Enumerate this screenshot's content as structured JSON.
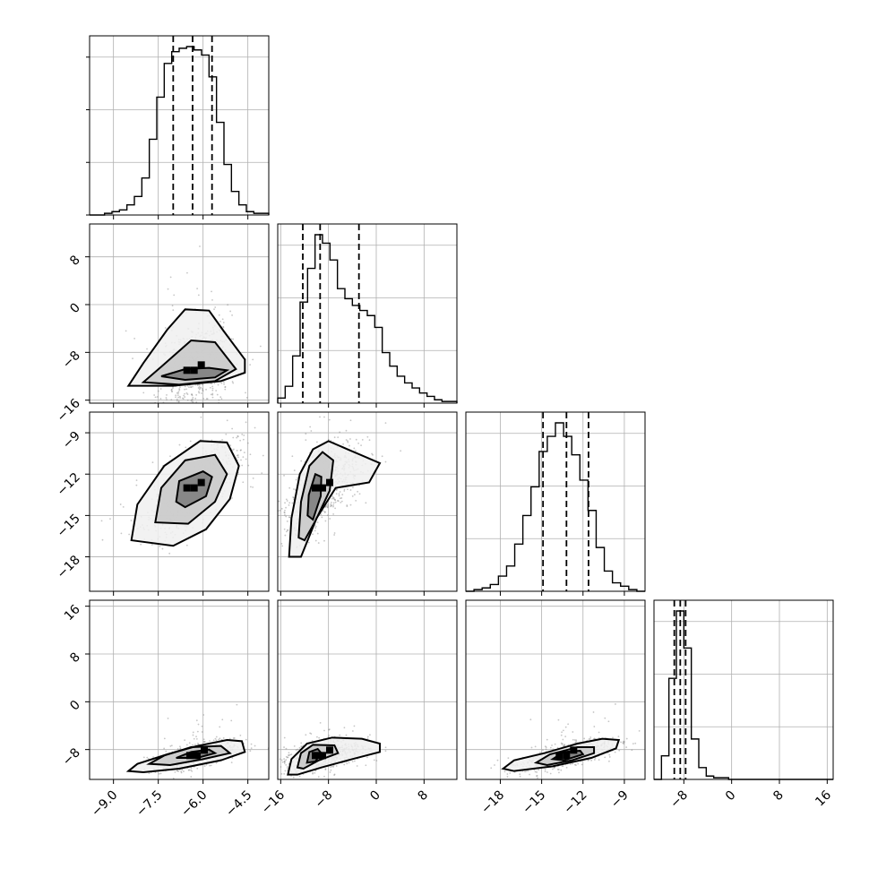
{
  "chart_data": {
    "type": "corner",
    "parameters": 4,
    "grid": true,
    "colors": {
      "ink": "#000000",
      "grid": "#b0b0b0",
      "samples": "#808080",
      "background": "#ffffff"
    },
    "parameter_ranges": [
      [
        -9.8,
        -3.8
      ],
      [
        -16.5,
        13.5
      ],
      [
        -20.5,
        -7.5
      ],
      [
        -13,
        17
      ]
    ],
    "ticks": [
      {
        "values": [
          -9.0,
          -7.5,
          -6.0,
          -4.5
        ],
        "labels": [
          "−9.0",
          "−7.5",
          "−6.0",
          "−4.5"
        ]
      },
      {
        "values": [
          -16,
          -8,
          0,
          8
        ],
        "labels": [
          "−16",
          "−8",
          "0",
          "8"
        ]
      },
      {
        "values": [
          -18,
          -15,
          -12,
          -9
        ],
        "labels": [
          "−18",
          "−15",
          "−12",
          "−9"
        ]
      },
      {
        "values": [
          -8,
          0,
          8,
          16
        ],
        "labels": [
          "−8",
          "0",
          "8",
          "16"
        ]
      }
    ],
    "quantiles": [
      [
        -7.0,
        -6.35,
        -5.7
      ],
      [
        -12.3,
        -9.4,
        -2.9
      ],
      [
        -14.9,
        -13.2,
        -11.6
      ],
      [
        -9.6,
        -8.6,
        -7.7
      ]
    ],
    "histograms": [
      {
        "bins": [
          -9.8,
          -3.8
        ],
        "counts": [
          0,
          0,
          1,
          2,
          3,
          6,
          11,
          22,
          45,
          70,
          90,
          97,
          99,
          100,
          98,
          95,
          82,
          55,
          30,
          14,
          6,
          2,
          1,
          1
        ]
      },
      {
        "bins": [
          -16.5,
          13.5
        ],
        "counts": [
          3,
          10,
          28,
          60,
          80,
          100,
          95,
          85,
          68,
          62,
          58,
          55,
          52,
          45,
          30,
          22,
          16,
          12,
          9,
          6,
          4,
          2,
          1,
          1
        ]
      },
      {
        "bins": [
          -20.5,
          -7.5
        ],
        "counts": [
          0,
          1,
          2,
          4,
          9,
          15,
          28,
          45,
          62,
          83,
          92,
          100,
          92,
          81,
          66,
          48,
          26,
          12,
          5,
          3,
          1,
          0
        ]
      },
      {
        "bins": [
          -13,
          17
        ],
        "counts": [
          0,
          14,
          60,
          100,
          78,
          24,
          7,
          2,
          1,
          1,
          0,
          0,
          0,
          0,
          0,
          0,
          0,
          0,
          0,
          0,
          0,
          0,
          0,
          0
        ]
      }
    ],
    "pairs": [
      {
        "row": 1,
        "col": 0,
        "mean": [
          -6.3,
          -11.0
        ],
        "sd": [
          0.6,
          4.0
        ],
        "corr": 0.25,
        "contours": [
          {
            "level": "inner",
            "points": [
              [
                -7.4,
                -12.0
              ],
              [
                -6.6,
                -10.8
              ],
              [
                -5.8,
                -10.6
              ],
              [
                -5.2,
                -11.0
              ],
              [
                -5.6,
                -12.2
              ],
              [
                -6.6,
                -12.6
              ]
            ]
          },
          {
            "level": "middle",
            "points": [
              [
                -8.0,
                -13.0
              ],
              [
                -7.4,
                -10.4
              ],
              [
                -6.4,
                -6.0
              ],
              [
                -5.6,
                -6.3
              ],
              [
                -4.9,
                -10.8
              ],
              [
                -5.6,
                -12.8
              ],
              [
                -6.8,
                -13.4
              ]
            ]
          },
          {
            "level": "outer",
            "points": [
              [
                -8.5,
                -13.6
              ],
              [
                -8.0,
                -9.8
              ],
              [
                -7.2,
                -4.2
              ],
              [
                -6.6,
                -0.8
              ],
              [
                -5.8,
                -1.0
              ],
              [
                -5.3,
                -4.5
              ],
              [
                -4.6,
                -9.2
              ],
              [
                -4.6,
                -11.4
              ],
              [
                -5.4,
                -12.8
              ],
              [
                -7.0,
                -13.6
              ]
            ]
          }
        ]
      },
      {
        "row": 2,
        "col": 0,
        "mean": [
          -6.3,
          -13.0
        ],
        "sd": [
          0.7,
          1.6
        ],
        "corr": 0.7,
        "contours": [
          {
            "level": "inner",
            "points": [
              [
                -6.9,
                -14.0
              ],
              [
                -6.8,
                -12.5
              ],
              [
                -6.0,
                -11.8
              ],
              [
                -5.7,
                -12.2
              ],
              [
                -5.9,
                -13.6
              ],
              [
                -6.6,
                -14.4
              ]
            ]
          },
          {
            "level": "middle",
            "points": [
              [
                -7.6,
                -15.5
              ],
              [
                -7.4,
                -13.0
              ],
              [
                -6.6,
                -11.0
              ],
              [
                -5.6,
                -10.6
              ],
              [
                -5.2,
                -12.0
              ],
              [
                -5.6,
                -14.0
              ],
              [
                -6.5,
                -15.6
              ]
            ]
          },
          {
            "level": "outer",
            "points": [
              [
                -8.4,
                -16.8
              ],
              [
                -8.2,
                -14.2
              ],
              [
                -7.3,
                -11.4
              ],
              [
                -6.1,
                -9.6
              ],
              [
                -5.2,
                -9.7
              ],
              [
                -4.8,
                -11.4
              ],
              [
                -5.1,
                -13.8
              ],
              [
                -5.9,
                -16.0
              ],
              [
                -7.0,
                -17.2
              ]
            ]
          }
        ]
      },
      {
        "row": 2,
        "col": 1,
        "mean": [
          -9.0,
          -13.0
        ],
        "sd": [
          3.2,
          1.6
        ],
        "corr": 0.6,
        "contours": [
          {
            "level": "inner",
            "points": [
              [
                -11.5,
                -15.0
              ],
              [
                -11.3,
                -13.5
              ],
              [
                -10.2,
                -12.0
              ],
              [
                -9.2,
                -12.2
              ],
              [
                -9.3,
                -13.6
              ],
              [
                -10.6,
                -15.3
              ]
            ]
          },
          {
            "level": "middle",
            "points": [
              [
                -13.0,
                -16.6
              ],
              [
                -12.6,
                -14.0
              ],
              [
                -11.2,
                -11.4
              ],
              [
                -9.0,
                -10.4
              ],
              [
                -7.2,
                -11.0
              ],
              [
                -7.8,
                -13.2
              ],
              [
                -10.2,
                -15.4
              ],
              [
                -12.0,
                -16.8
              ]
            ]
          },
          {
            "level": "outer",
            "points": [
              [
                -14.6,
                -18.0
              ],
              [
                -14.2,
                -15.2
              ],
              [
                -12.8,
                -12.0
              ],
              [
                -10.6,
                -10.2
              ],
              [
                -8.0,
                -9.6
              ],
              [
                -4.8,
                -10.2
              ],
              [
                0.6,
                -11.2
              ],
              [
                -1.2,
                -12.6
              ],
              [
                -6.8,
                -13.0
              ],
              [
                -10.0,
                -15.2
              ],
              [
                -12.6,
                -18.0
              ]
            ]
          }
        ]
      },
      {
        "row": 3,
        "col": 0,
        "mean": [
          -6.2,
          -9.0
        ],
        "sd": [
          0.6,
          1.3
        ],
        "corr": 0.65,
        "contours": [
          {
            "level": "inner",
            "points": [
              [
                -6.9,
                -9.4
              ],
              [
                -6.4,
                -8.4
              ],
              [
                -5.8,
                -8.0
              ],
              [
                -5.6,
                -8.6
              ],
              [
                -6.2,
                -9.4
              ]
            ]
          },
          {
            "level": "middle",
            "points": [
              [
                -7.8,
                -10.4
              ],
              [
                -7.3,
                -9.0
              ],
              [
                -6.4,
                -7.6
              ],
              [
                -5.4,
                -7.4
              ],
              [
                -5.1,
                -8.6
              ],
              [
                -6.0,
                -9.6
              ],
              [
                -7.1,
                -10.6
              ]
            ]
          },
          {
            "level": "outer",
            "points": [
              [
                -8.5,
                -11.6
              ],
              [
                -8.2,
                -10.4
              ],
              [
                -7.2,
                -8.8
              ],
              [
                -6.2,
                -7.4
              ],
              [
                -5.2,
                -6.4
              ],
              [
                -4.7,
                -6.6
              ],
              [
                -4.6,
                -8.4
              ],
              [
                -5.4,
                -9.8
              ],
              [
                -6.8,
                -11.2
              ],
              [
                -8.0,
                -11.8
              ]
            ]
          }
        ]
      },
      {
        "row": 3,
        "col": 1,
        "mean": [
          -9.0,
          -9.0
        ],
        "sd": [
          3.2,
          1.3
        ],
        "corr": 0.45,
        "contours": [
          {
            "level": "inner",
            "points": [
              [
                -11.6,
                -10.2
              ],
              [
                -11.2,
                -8.4
              ],
              [
                -9.8,
                -7.9
              ],
              [
                -9.2,
                -8.6
              ],
              [
                -10.2,
                -10.0
              ]
            ]
          },
          {
            "level": "middle",
            "points": [
              [
                -13.2,
                -11.0
              ],
              [
                -12.6,
                -8.6
              ],
              [
                -10.6,
                -7.2
              ],
              [
                -7.0,
                -7.3
              ],
              [
                -6.4,
                -8.6
              ],
              [
                -9.6,
                -9.8
              ],
              [
                -12.2,
                -11.2
              ]
            ]
          },
          {
            "level": "outer",
            "points": [
              [
                -14.8,
                -12.2
              ],
              [
                -14.2,
                -9.6
              ],
              [
                -11.6,
                -7.0
              ],
              [
                -7.4,
                -6.0
              ],
              [
                -2.4,
                -6.2
              ],
              [
                0.6,
                -7.0
              ],
              [
                0.6,
                -8.4
              ],
              [
                -4.0,
                -9.6
              ],
              [
                -9.2,
                -11.0
              ],
              [
                -13.2,
                -12.2
              ]
            ]
          }
        ]
      },
      {
        "row": 3,
        "col": 2,
        "mean": [
          -13.2,
          -9.0
        ],
        "sd": [
          1.6,
          1.3
        ],
        "corr": 0.7,
        "contours": [
          {
            "level": "inner",
            "points": [
              [
                -14.2,
                -9.6
              ],
              [
                -13.4,
                -8.4
              ],
              [
                -12.2,
                -8.2
              ],
              [
                -12.0,
                -8.8
              ],
              [
                -13.4,
                -9.8
              ]
            ]
          },
          {
            "level": "middle",
            "points": [
              [
                -15.4,
                -10.2
              ],
              [
                -14.4,
                -8.8
              ],
              [
                -12.4,
                -7.6
              ],
              [
                -11.2,
                -7.6
              ],
              [
                -11.2,
                -8.6
              ],
              [
                -12.8,
                -9.8
              ],
              [
                -14.6,
                -10.6
              ]
            ]
          },
          {
            "level": "outer",
            "points": [
              [
                -17.8,
                -11.2
              ],
              [
                -17.0,
                -9.8
              ],
              [
                -14.8,
                -8.6
              ],
              [
                -12.4,
                -7.0
              ],
              [
                -10.6,
                -6.2
              ],
              [
                -9.4,
                -6.4
              ],
              [
                -9.6,
                -7.8
              ],
              [
                -11.4,
                -9.4
              ],
              [
                -14.2,
                -10.8
              ],
              [
                -17.0,
                -11.6
              ]
            ]
          }
        ]
      }
    ]
  }
}
